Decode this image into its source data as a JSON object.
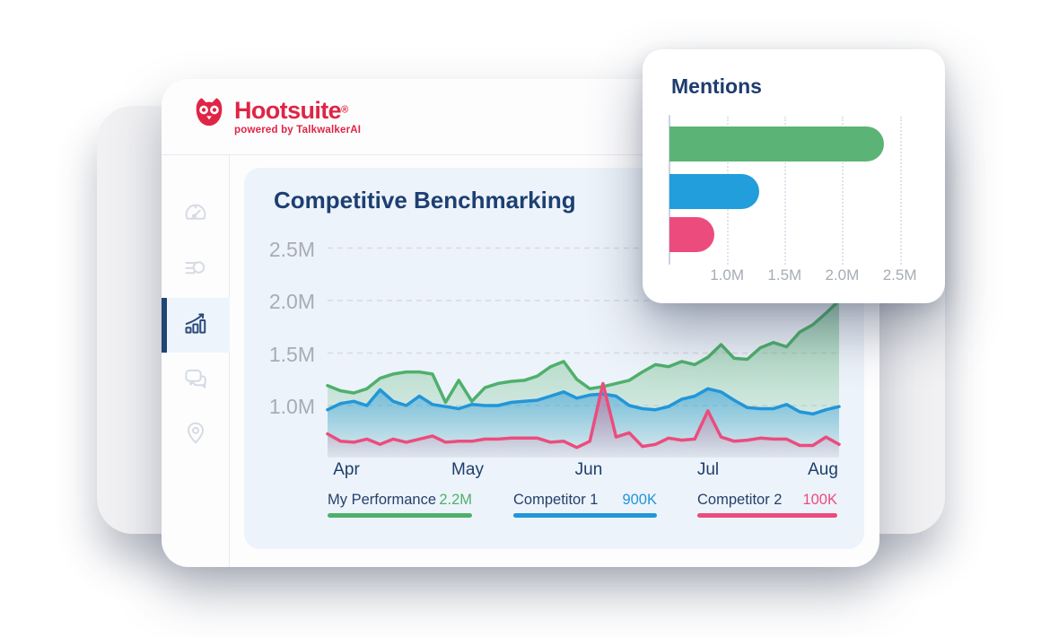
{
  "brand": {
    "name": "Hootsuite",
    "registered": "®",
    "tagline": "powered by TalkwalkerAI"
  },
  "colors": {
    "brand_red": "#e02445",
    "navy": "#1d3f72",
    "axis_gray": "#a7adb8",
    "panel_bg": "#edf3fa",
    "green": "#4fb06c",
    "blue": "#2196d9",
    "pink": "#ec4c7d"
  },
  "sidebar": {
    "items": [
      {
        "icon": "speedometer-icon",
        "active": false
      },
      {
        "icon": "list-search-icon",
        "active": false
      },
      {
        "icon": "chart-growth-icon",
        "active": true
      },
      {
        "icon": "chat-icon",
        "active": false
      },
      {
        "icon": "location-pin-icon",
        "active": false
      }
    ]
  },
  "benchmark": {
    "title": "Competitive Benchmarking",
    "y_ticks": [
      "2.5M",
      "2.0M",
      "1.5M",
      "1.0M"
    ],
    "x_labels": [
      "Apr",
      "May",
      "Jun",
      "Jul",
      "Aug"
    ],
    "legend": [
      {
        "name": "My Performance",
        "value": "2.2M"
      },
      {
        "name": "Competitor 1",
        "value": "900K"
      },
      {
        "name": "Competitor 2",
        "value": "100K"
      }
    ]
  },
  "mentions": {
    "title": "Mentions",
    "x_ticks": [
      "1.0M",
      "1.5M",
      "2.0M",
      "2.5M"
    ]
  },
  "chart_data": [
    {
      "id": "competitive-benchmarking",
      "type": "area",
      "title": "Competitive Benchmarking",
      "x_labels": [
        "Apr",
        "May",
        "Jun",
        "Jul",
        "Aug"
      ],
      "ylabel": "",
      "xlabel": "",
      "y_ticks": [
        "2.5M",
        "2.0M",
        "1.5M",
        "1.0M"
      ],
      "y_tick_values": [
        2.5,
        2.0,
        1.5,
        1.0
      ],
      "ylim": [
        0.5,
        2.75
      ],
      "grid": "dashed-horizontal",
      "legend_position": "bottom",
      "series": [
        {
          "name": "My Performance",
          "value_label": "2.2M",
          "color": "#4fb06c",
          "values": [
            1.19,
            1.14,
            1.12,
            1.16,
            1.26,
            1.3,
            1.32,
            1.32,
            1.3,
            1.03,
            1.24,
            1.04,
            1.17,
            1.21,
            1.23,
            1.24,
            1.28,
            1.37,
            1.42,
            1.25,
            1.16,
            1.18,
            1.21,
            1.24,
            1.32,
            1.39,
            1.37,
            1.42,
            1.39,
            1.46,
            1.58,
            1.45,
            1.44,
            1.55,
            1.6,
            1.56,
            1.7,
            1.77,
            1.88,
            2.0
          ]
        },
        {
          "name": "Competitor 1",
          "value_label": "900K",
          "color": "#2196d9",
          "values": [
            0.96,
            1.02,
            1.04,
            1.0,
            1.15,
            1.04,
            1.0,
            1.09,
            1.01,
            0.99,
            0.97,
            1.01,
            1.0,
            1.0,
            1.03,
            1.04,
            1.05,
            1.09,
            1.13,
            1.07,
            1.1,
            1.11,
            1.09,
            1.0,
            0.97,
            0.96,
            0.99,
            1.06,
            1.09,
            1.16,
            1.13,
            1.05,
            0.98,
            0.97,
            0.97,
            1.01,
            0.94,
            0.92,
            0.96,
            0.99
          ]
        },
        {
          "name": "Competitor 2",
          "value_label": "100K",
          "color": "#ec4c7d",
          "values": [
            0.73,
            0.66,
            0.65,
            0.68,
            0.63,
            0.68,
            0.65,
            0.68,
            0.71,
            0.65,
            0.66,
            0.66,
            0.68,
            0.68,
            0.69,
            0.69,
            0.69,
            0.65,
            0.66,
            0.6,
            0.66,
            1.21,
            0.7,
            0.74,
            0.61,
            0.63,
            0.69,
            0.67,
            0.68,
            0.95,
            0.7,
            0.66,
            0.67,
            0.69,
            0.68,
            0.68,
            0.62,
            0.62,
            0.7,
            0.63
          ]
        }
      ]
    },
    {
      "id": "mentions",
      "type": "bar",
      "orientation": "horizontal",
      "title": "Mentions",
      "x_ticks": [
        "1.0M",
        "1.5M",
        "2.0M",
        "2.5M"
      ],
      "x_tick_values": [
        1.0,
        1.5,
        2.0,
        2.5
      ],
      "axis_min": 0.5,
      "axis_max": 2.55,
      "grid": "dotted-vertical",
      "bars": [
        {
          "value": 2.36,
          "color": "#5bb475"
        },
        {
          "value": 1.28,
          "color": "#219edb"
        },
        {
          "value": 0.89,
          "color": "#ec4c7d"
        }
      ]
    }
  ]
}
